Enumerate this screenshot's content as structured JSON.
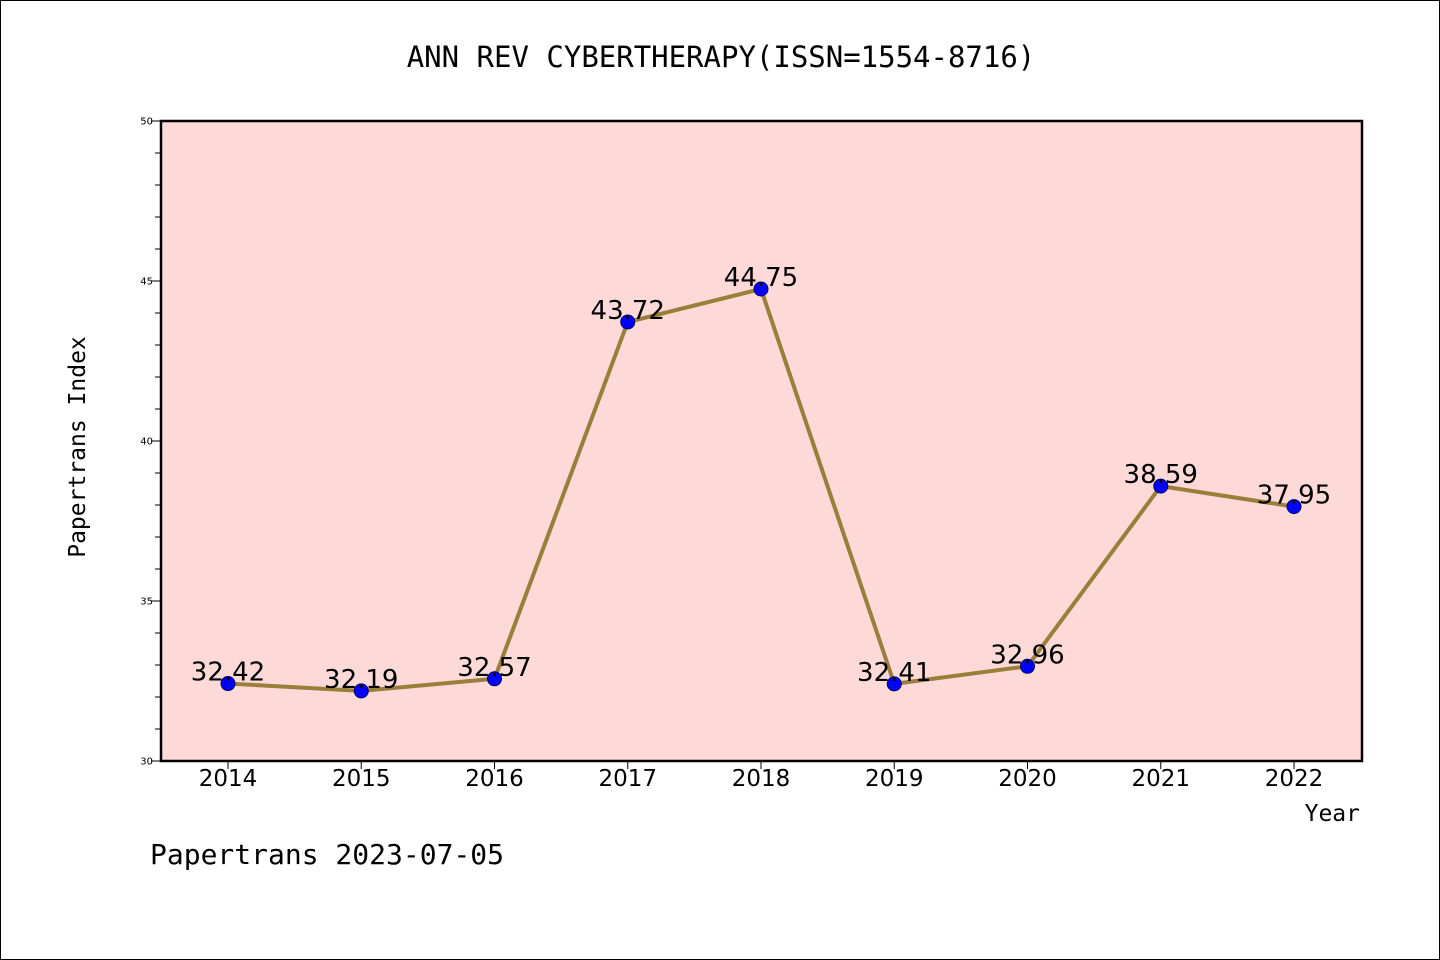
{
  "footer": "Papertrans 2023-07-05",
  "colors": {
    "plot_background": "#fddad7",
    "line": "#9a7e3a",
    "marker": "#0000ff",
    "axis": "#000000"
  },
  "chart_data": {
    "type": "line",
    "title": "ANN REV CYBERTHERAPY(ISSN=1554-8716)",
    "xlabel": "Year",
    "ylabel": "Papertrans Index",
    "categories": [
      "2014",
      "2015",
      "2016",
      "2017",
      "2018",
      "2019",
      "2020",
      "2021",
      "2022"
    ],
    "series": [
      {
        "values": [
          32.42,
          32.19,
          32.57,
          43.72,
          44.75,
          32.41,
          32.96,
          38.59,
          37.95
        ],
        "labels": [
          "32.42",
          "32.19",
          "32.57",
          "43.72",
          "44.75",
          "32.41",
          "32.96",
          "38.59",
          "37.95"
        ]
      }
    ],
    "ylim": [
      30,
      50
    ],
    "y_major_ticks": [
      30,
      35,
      40,
      45,
      50
    ],
    "y_minor_step": 1,
    "grid": false,
    "legend": "none"
  }
}
